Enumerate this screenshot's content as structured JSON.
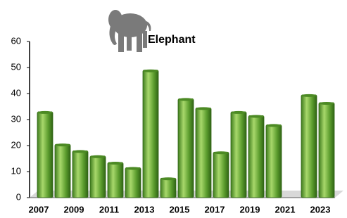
{
  "chart_data": {
    "type": "bar",
    "title": "Elephant",
    "categories": [
      "2007",
      null,
      "2009",
      null,
      "2011",
      null,
      "2013",
      null,
      "2015",
      null,
      "2017",
      null,
      "2019",
      null,
      "2021",
      null,
      "2023"
    ],
    "values": [
      33,
      20.5,
      18,
      16,
      13.5,
      11.5,
      49,
      7.5,
      38,
      34.5,
      17.5,
      33,
      31.5,
      28,
      null,
      39.5,
      36.5
    ],
    "color": "#5fa32e",
    "ylim": [
      0,
      60
    ],
    "yticks": [
      0,
      10,
      20,
      30,
      40,
      50,
      60
    ],
    "grid": false
  }
}
